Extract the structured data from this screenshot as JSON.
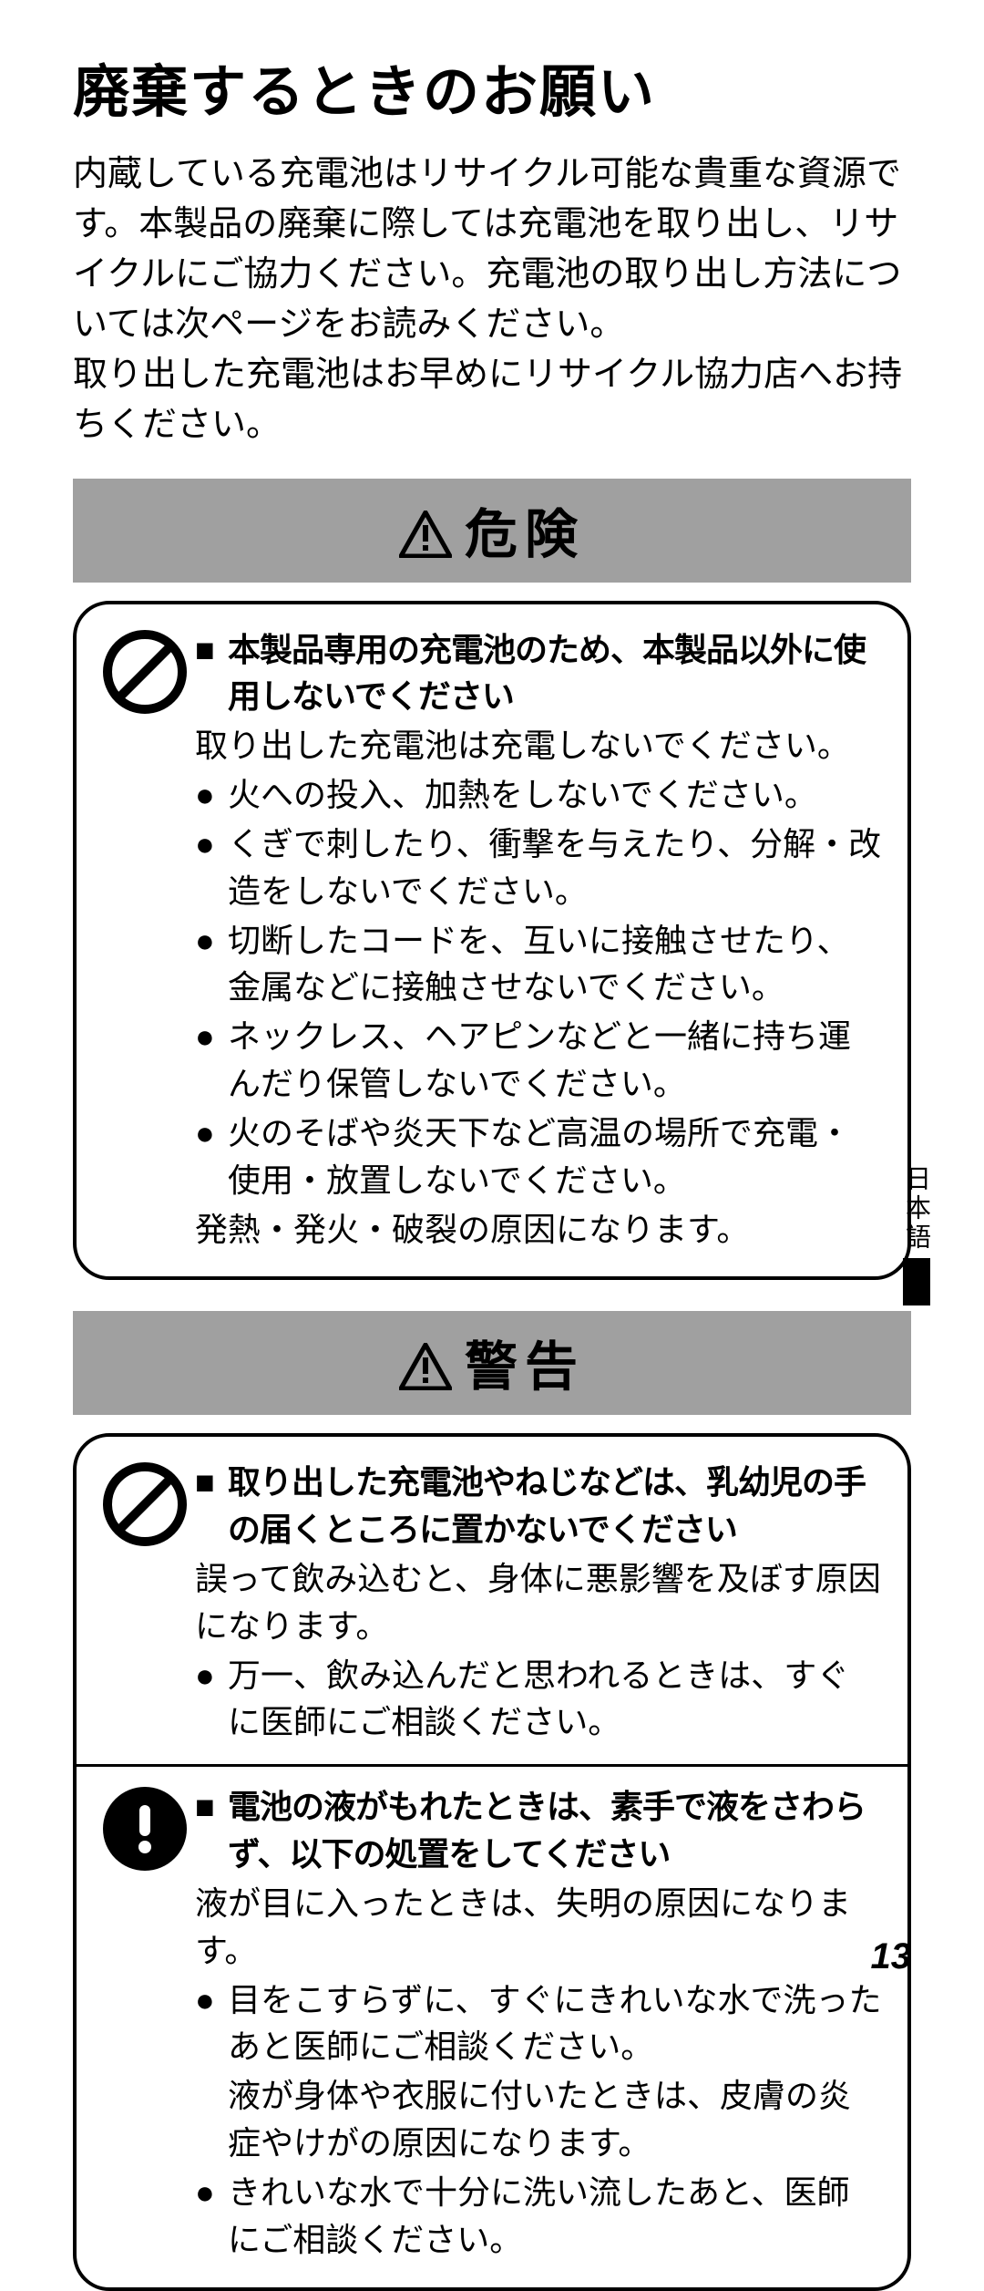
{
  "title": "廃棄するときのお願い",
  "intro": "内蔵している充電池はリサイクル可能な貴重な資源です。本製品の廃棄に際しては充電池を取り出し、リサイクルにご協力ください。充電池の取り出し方法については次ページをお読みください。\n取り出した充電池はお早めにリサイクル協力店へお持ちください。",
  "danger_label": "危険",
  "warning_label": "警告",
  "danger_box": {
    "sections": [
      {
        "icon": "prohibit",
        "heading": "本製品専用の充電池のため、本製品以外に使用しないでください",
        "plain_lines": [
          "取り出した充電池は充電しないでください。"
        ],
        "bullets": [
          "火への投入、加熱をしないでください。",
          "くぎで刺したり、衝撃を与えたり、分解・改造をしないでください。",
          "切断したコードを、互いに接触させたり、金属などに接触させないでください。",
          "ネックレス、ヘアピンなどと一緒に持ち運んだり保管しないでください。",
          "火のそばや炎天下など高温の場所で充電・使用・放置しないでください。"
        ],
        "trailing": "発熱・発火・破裂の原因になります。"
      }
    ]
  },
  "warning_box": {
    "sections": [
      {
        "icon": "prohibit",
        "heading": "取り出した充電池やねじなどは、乳幼児の手の届くところに置かないでください",
        "plain_lines": [
          "誤って飲み込むと、身体に悪影響を及ぼす原因になります。"
        ],
        "bullets": [
          "万一、飲み込んだと思われるときは、すぐに医師にご相談ください。"
        ],
        "trailing": ""
      },
      {
        "icon": "mandatory",
        "heading": "電池の液がもれたときは、素手で液をさわらず、以下の処置をしてください",
        "plain_lines": [
          "液が目に入ったときは、失明の原因になります。"
        ],
        "bullets_mixed": [
          {
            "type": "bullet",
            "text": "目をこすらずに、すぐにきれいな水で洗ったあと医師にご相談ください。"
          },
          {
            "type": "plain",
            "text": "液が身体や衣服に付いたときは、皮膚の炎症やけがの原因になります。"
          },
          {
            "type": "bullet",
            "text": "きれいな水で十分に洗い流したあと、医師にご相談ください。"
          }
        ],
        "trailing": ""
      }
    ]
  },
  "side_tab": "日本語",
  "page_number": "13",
  "colors": {
    "banner_bg": "#a0a0a0",
    "text": "#000000",
    "bg": "#ffffff"
  }
}
